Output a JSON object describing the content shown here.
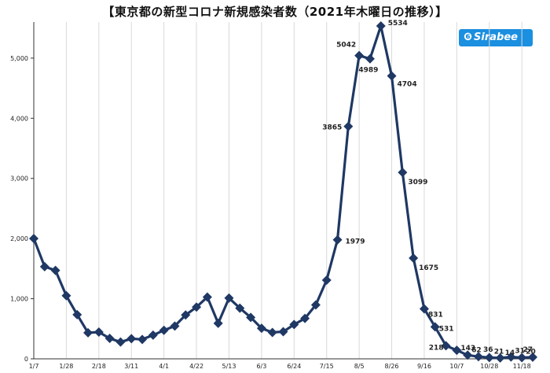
{
  "title": "【東京都の新型コロナ新規感染者数（2021年木曜日の推移）】",
  "logo_text": "Sirabee",
  "colors": {
    "series": "#1f3864",
    "grid": "#d9d9d9",
    "axis": "#333333",
    "logo": "#1b8fe0"
  },
  "chart_data": {
    "type": "line",
    "title": "【東京都の新型コロナ新規感染者数（2021年木曜日の推移）】",
    "xlabel": "",
    "ylabel": "",
    "ylim": [
      0,
      5600
    ],
    "yticks": [
      0,
      1000,
      2000,
      3000,
      4000,
      5000
    ],
    "ytick_labels": [
      "0",
      "1,000",
      "2,000",
      "3,000",
      "4,000",
      "5,000"
    ],
    "grid": "vertical",
    "marker": "diamond",
    "x": [
      "1/7",
      "1/14",
      "1/21",
      "1/28",
      "2/4",
      "2/11",
      "2/18",
      "2/25",
      "3/4",
      "3/11",
      "3/18",
      "3/25",
      "4/1",
      "4/8",
      "4/15",
      "4/22",
      "4/29",
      "5/6",
      "5/13",
      "5/20",
      "5/27",
      "6/3",
      "6/10",
      "6/17",
      "6/24",
      "7/1",
      "7/8",
      "7/15",
      "7/22",
      "7/29",
      "8/5",
      "8/12",
      "8/19",
      "8/26",
      "9/2",
      "9/9",
      "9/16",
      "9/23",
      "9/30",
      "10/7",
      "10/14",
      "10/21",
      "10/28",
      "11/4",
      "11/11",
      "11/18",
      "11/25"
    ],
    "xtick_labels": [
      "1/7",
      "1/28",
      "2/18",
      "3/11",
      "4/1",
      "4/22",
      "5/13",
      "6/3",
      "6/24",
      "7/15",
      "8/5",
      "8/26",
      "9/16",
      "10/7",
      "10/28",
      "11/18"
    ],
    "values": [
      2001,
      1533,
      1471,
      1050,
      735,
      434,
      445,
      340,
      279,
      335,
      323,
      394,
      475,
      545,
      729,
      861,
      1027,
      591,
      1010,
      843,
      689,
      508,
      439,
      452,
      570,
      673,
      896,
      1308,
      1979,
      3865,
      5042,
      4989,
      5534,
      4704,
      3099,
      1675,
      831,
      531,
      218,
      143,
      62,
      36,
      21,
      14,
      31,
      20,
      27
    ],
    "data_labels": [
      {
        "x": "7/22",
        "text": "1979"
      },
      {
        "x": "7/29",
        "text": "3865"
      },
      {
        "x": "8/5",
        "text": "5042"
      },
      {
        "x": "8/12",
        "text": "4989"
      },
      {
        "x": "8/19",
        "text": "5534"
      },
      {
        "x": "8/26",
        "text": "4704"
      },
      {
        "x": "9/2",
        "text": "3099"
      },
      {
        "x": "9/9",
        "text": "1675"
      },
      {
        "x": "9/16",
        "text": "831"
      },
      {
        "x": "9/23",
        "text": "531"
      },
      {
        "x": "9/30",
        "text": "218"
      },
      {
        "x": "10/7",
        "text": "143"
      },
      {
        "x": "10/14",
        "text": "62"
      },
      {
        "x": "10/21",
        "text": "36"
      },
      {
        "x": "10/28",
        "text": "21"
      },
      {
        "x": "11/4",
        "text": "14"
      },
      {
        "x": "11/11",
        "text": "31"
      },
      {
        "x": "11/18",
        "text": "20"
      },
      {
        "x": "11/25",
        "text": "27"
      }
    ]
  }
}
